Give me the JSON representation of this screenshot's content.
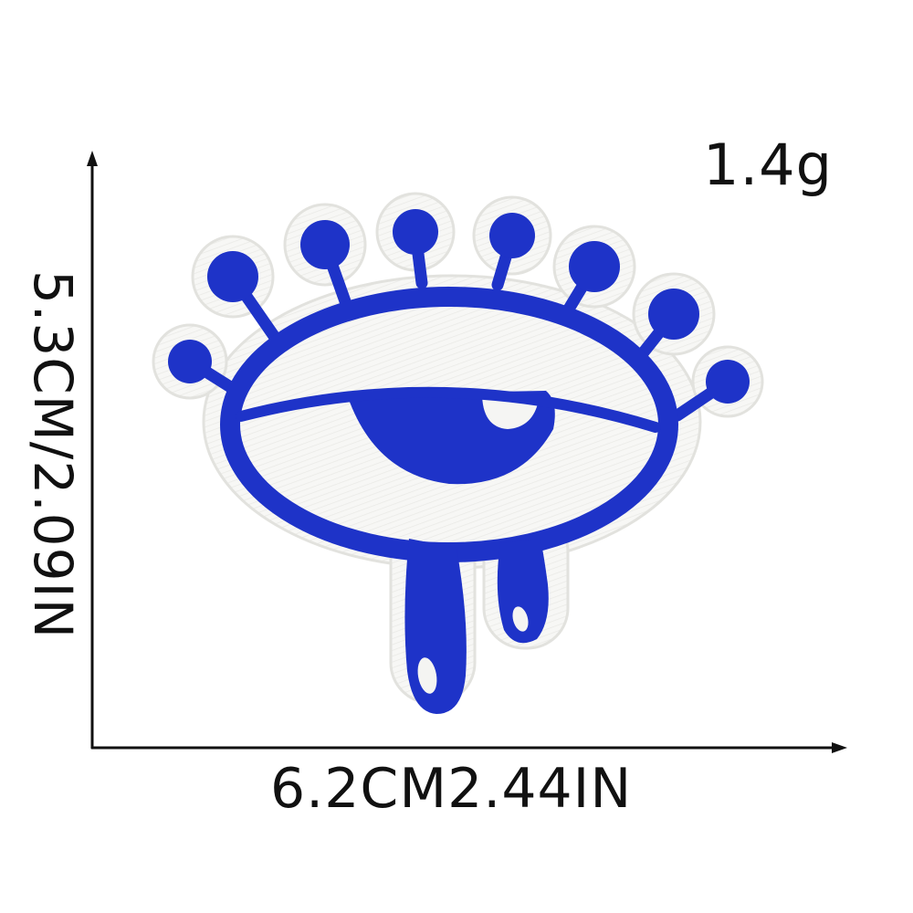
{
  "product": {
    "weight": "1.4g",
    "width_dimension": "6.2CM2.44IN",
    "height_dimension": "5.3CM/2.09IN"
  },
  "colors": {
    "thread_blue": "#1e33c8",
    "patch_white": "#f7f7f5",
    "patch_edge": "#e6e6e2",
    "ink": "#111111"
  },
  "icons": {
    "patch": "evil-eye-patch-icon",
    "axis_arrow": "arrow-icon"
  }
}
